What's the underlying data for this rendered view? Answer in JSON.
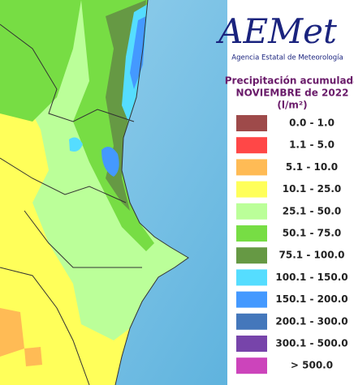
{
  "logo": {
    "name": "AEMet",
    "agency": "Agencia Estatal de Meteorología"
  },
  "legend": {
    "title": "Precipitación acumulada",
    "subtitle": "NOVIEMBRE de 2022",
    "unit": "(l/m²)",
    "items": [
      {
        "label": "0.0 - 1.0",
        "color": "#9e4a4a"
      },
      {
        "label": "1.1 - 5.0",
        "color": "#ff4747"
      },
      {
        "label": "5.1 - 10.0",
        "color": "#ffbb55"
      },
      {
        "label": "10.1 - 25.0",
        "color": "#ffff5a"
      },
      {
        "label": "25.1 - 50.0",
        "color": "#bbff99"
      },
      {
        "label": "50.1 - 75.0",
        "color": "#77dd44"
      },
      {
        "label": "75.1 - 100.0",
        "color": "#669944"
      },
      {
        "label": "100.1 - 150.0",
        "color": "#55ddff"
      },
      {
        "label": "150.1 - 200.0",
        "color": "#4499ff"
      },
      {
        "label": "200.1 - 300.0",
        "color": "#4477bb"
      },
      {
        "label": "300.1 - 500.0",
        "color": "#7744aa"
      },
      {
        "label": "> 500.0",
        "color": "#cc44bb"
      }
    ]
  }
}
